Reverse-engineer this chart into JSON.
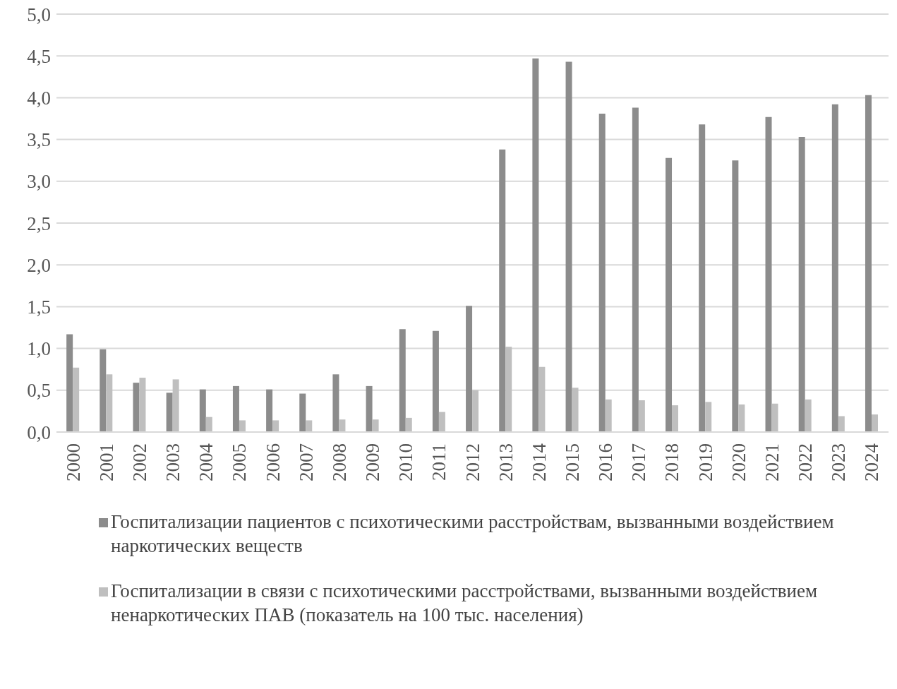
{
  "chart_data": {
    "type": "bar",
    "categories": [
      "2000",
      "2001",
      "2002",
      "2003",
      "2004",
      "2005",
      "2006",
      "2007",
      "2008",
      "2009",
      "2010",
      "2011",
      "2012",
      "2013",
      "2014",
      "2015",
      "2016",
      "2017",
      "2018",
      "2019",
      "2020",
      "2021",
      "2022",
      "2023",
      "2024"
    ],
    "series": [
      {
        "name": "Госпитализации пациентов с психотическими расстройствам, вызванными воздействием наркотических веществ",
        "color": "#8c8c8c",
        "values": [
          1.17,
          0.99,
          0.59,
          0.47,
          0.51,
          0.55,
          0.51,
          0.46,
          0.69,
          0.55,
          1.23,
          1.21,
          1.51,
          3.38,
          4.47,
          4.43,
          3.81,
          3.88,
          3.28,
          3.68,
          3.25,
          3.77,
          3.53,
          3.92,
          4.03
        ]
      },
      {
        "name": "Госпитализации в связи с психотическими расстройствами, вызванными воздействием ненаркотических ПАВ (показатель на 100 тыс. населения)",
        "color": "#bfbfbf",
        "values": [
          0.77,
          0.69,
          0.65,
          0.63,
          0.18,
          0.14,
          0.14,
          0.14,
          0.15,
          0.15,
          0.17,
          0.24,
          0.5,
          1.02,
          0.78,
          0.53,
          0.39,
          0.38,
          0.32,
          0.36,
          0.33,
          0.34,
          0.39,
          0.19,
          0.21
        ]
      }
    ],
    "ylim": [
      0,
      5
    ],
    "yticks": [
      {
        "value": 0,
        "label": "0,0"
      },
      {
        "value": 0.5,
        "label": "0,5"
      },
      {
        "value": 1,
        "label": "1,0"
      },
      {
        "value": 1.5,
        "label": "1,5"
      },
      {
        "value": 2,
        "label": "2,0"
      },
      {
        "value": 2.5,
        "label": "2,5"
      },
      {
        "value": 3,
        "label": "3,0"
      },
      {
        "value": 3.5,
        "label": "3,5"
      },
      {
        "value": 4,
        "label": "4,0"
      },
      {
        "value": 4.5,
        "label": "4,5"
      },
      {
        "value": 5,
        "label": "5,0"
      }
    ],
    "grid": "y",
    "legend": "bottom"
  }
}
